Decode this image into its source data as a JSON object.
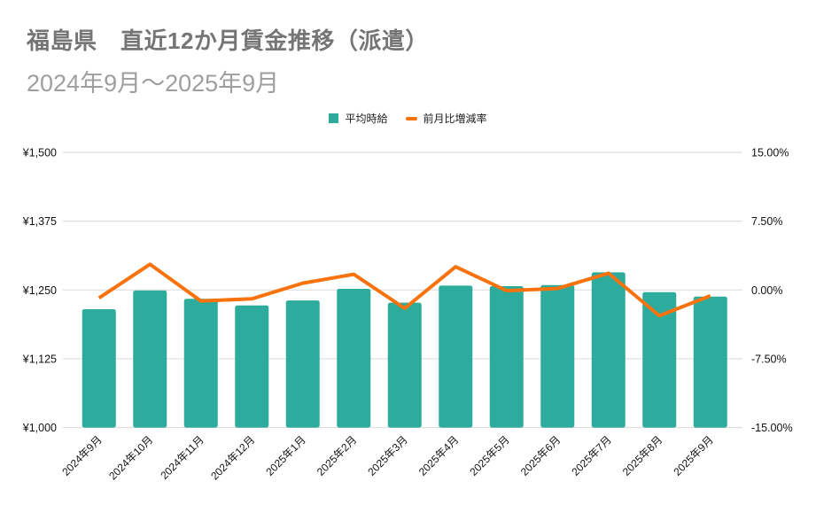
{
  "header": {
    "title": "福島県　直近12か月賃金推移（派遣）",
    "subtitle": "2024年9月～2025年9月"
  },
  "legend": {
    "items": [
      {
        "label": "平均時給",
        "swatch": "square",
        "color": "#2dab9d"
      },
      {
        "label": "前月比増減率",
        "swatch": "dash",
        "color": "#f8730d"
      }
    ],
    "position": "top-center"
  },
  "chart_data": {
    "type": "combo-bar-line",
    "categories": [
      "2024年9月",
      "2024年10月",
      "2024年11月",
      "2024年12月",
      "2025年1月",
      "2025年2月",
      "2025年3月",
      "2025年4月",
      "2025年5月",
      "2025年6月",
      "2025年7月",
      "2025年8月",
      "2025年9月"
    ],
    "series": [
      {
        "name": "平均時給",
        "type": "bar",
        "axis": "left",
        "unit": "yen",
        "color": "#2dab9d",
        "values": [
          1215,
          1249,
          1234,
          1222,
          1231,
          1252,
          1227,
          1258,
          1257,
          1259,
          1282,
          1246,
          1238
        ]
      },
      {
        "name": "前月比増減率",
        "type": "line",
        "axis": "right",
        "unit": "percent",
        "color": "#f8730d",
        "values": [
          -0.87,
          2.8,
          -1.2,
          -0.97,
          0.74,
          1.71,
          -2.0,
          2.53,
          -0.08,
          0.16,
          1.83,
          -2.81,
          -0.64
        ]
      }
    ],
    "left_axis": {
      "min": 1000,
      "max": 1500,
      "ticks": [
        "¥1,000",
        "¥1,125",
        "¥1,250",
        "¥1,375",
        "¥1,500"
      ]
    },
    "right_axis": {
      "min": -15,
      "max": 15,
      "ticks": [
        "-15.00%",
        "-7.50%",
        "0.00%",
        "7.50%",
        "15.00%"
      ]
    },
    "grid": true,
    "legend_position": "top",
    "x_label_rotation": -45
  },
  "colors": {
    "background": "#ffffff",
    "title_text": "#757575",
    "subtitle_text": "#9e9e9e",
    "axis_text": "#111111",
    "gridline": "#dadada"
  }
}
